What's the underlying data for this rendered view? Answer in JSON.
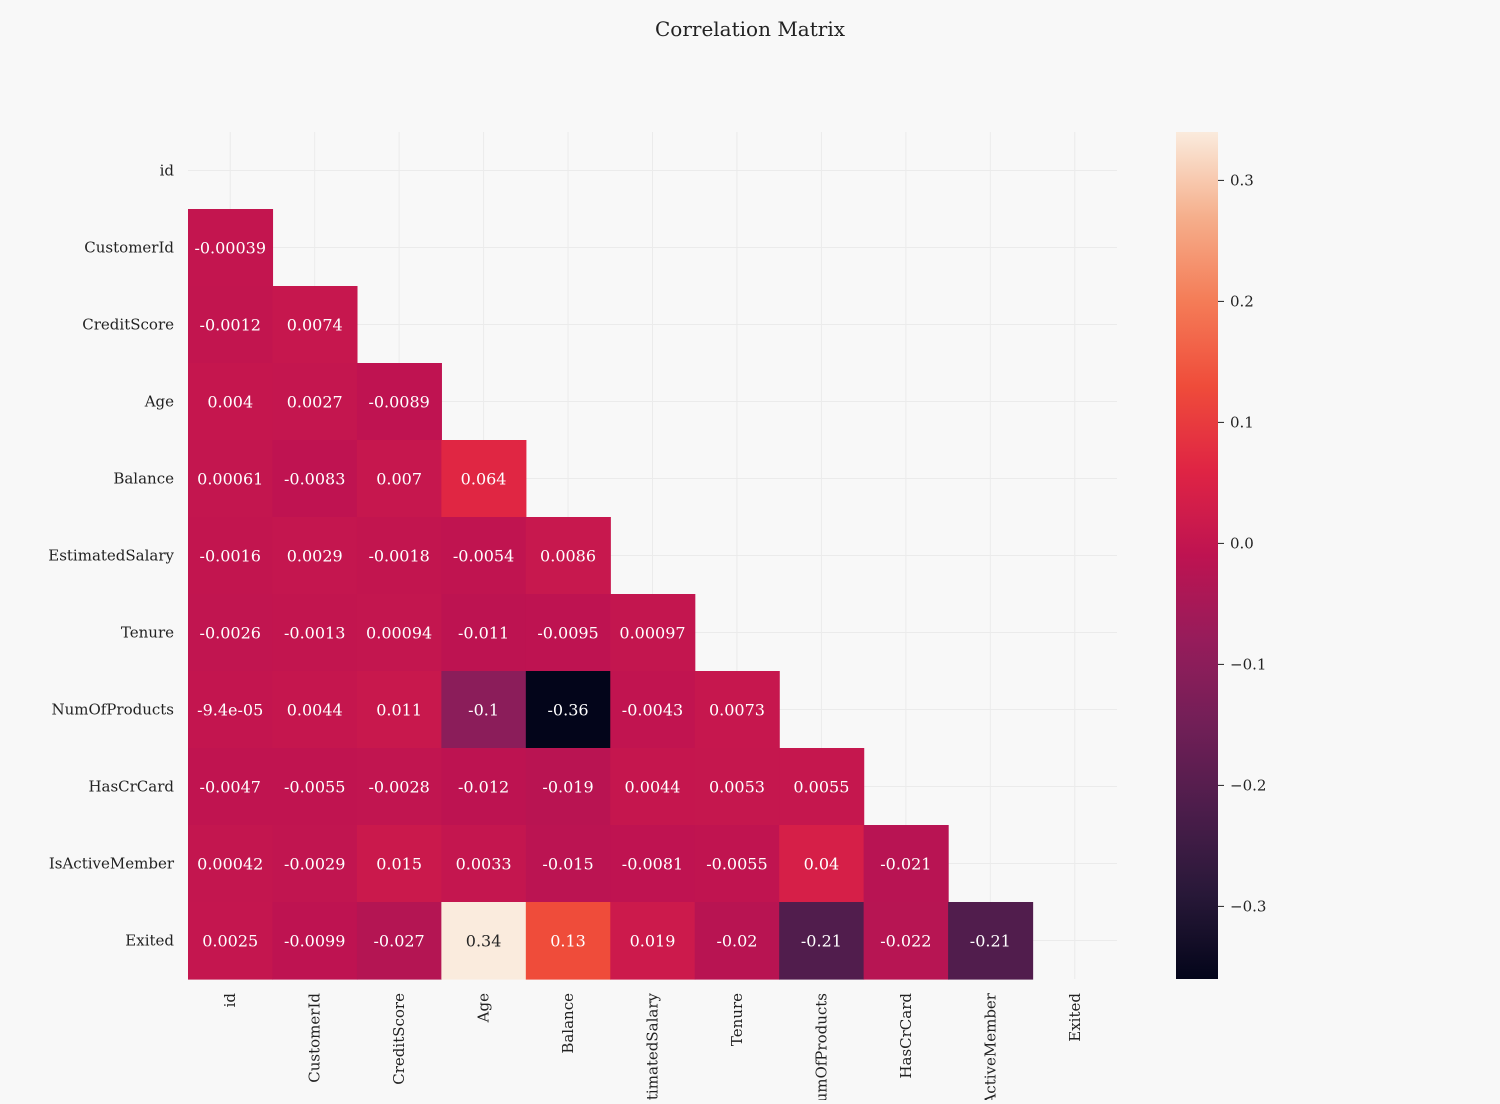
{
  "chart_data": {
    "type": "heatmap",
    "title": "Correlation Matrix",
    "mask": "upper-triangle-including-diagonal",
    "labels": [
      "id",
      "CustomerId",
      "CreditScore",
      "Age",
      "Balance",
      "EstimatedSalary",
      "Tenure",
      "NumOfProducts",
      "HasCrCard",
      "IsActiveMember",
      "Exited"
    ],
    "x_tick_labels": [
      "id",
      "CustomerId",
      "CreditScore",
      "Age",
      "Balance",
      "EstimatedSalary",
      "Tenure",
      "NumOfProducts",
      "HasCrCard",
      "IsActiveMember",
      "Exited"
    ],
    "y_tick_labels": [
      "id",
      "CustomerId",
      "CreditScore",
      "Age",
      "Balance",
      "EstimatedSalary",
      "Tenure",
      "NumOfProducts",
      "HasCrCard",
      "IsActiveMember",
      "Exited"
    ],
    "rows": [
      [],
      [
        "-0.00039"
      ],
      [
        "-0.0012",
        "0.0074"
      ],
      [
        "0.004",
        "0.0027",
        "-0.0089"
      ],
      [
        "0.00061",
        "-0.0083",
        "0.007",
        "0.064"
      ],
      [
        "-0.0016",
        "0.0029",
        "-0.0018",
        "-0.0054",
        "0.0086"
      ],
      [
        "-0.0026",
        "-0.0013",
        "0.00094",
        "-0.011",
        "-0.0095",
        "0.00097"
      ],
      [
        "-9.4e-05",
        "0.0044",
        "0.011",
        "-0.1",
        "-0.36",
        "-0.0043",
        "0.0073"
      ],
      [
        "-0.0047",
        "-0.0055",
        "-0.0028",
        "-0.012",
        "-0.019",
        "0.0044",
        "0.0053",
        "0.0055"
      ],
      [
        "0.00042",
        "-0.0029",
        "0.015",
        "0.0033",
        "-0.015",
        "-0.0081",
        "-0.0055",
        "0.04",
        "-0.021"
      ],
      [
        "0.0025",
        "-0.0099",
        "-0.027",
        "0.34",
        "0.13",
        "0.019",
        "-0.02",
        "-0.21",
        "-0.022",
        "-0.21"
      ]
    ],
    "vmin": -0.36,
    "vmax": 0.34,
    "colormap": "rocket",
    "colorbar_ticks": [
      0.3,
      0.2,
      0.1,
      0.0,
      -0.1,
      -0.2,
      -0.3
    ],
    "colorbar_tick_labels": [
      "0.3",
      "0.2",
      "0.1",
      "0.0",
      "−0.1",
      "−0.2",
      "−0.3"
    ],
    "grid": true
  }
}
